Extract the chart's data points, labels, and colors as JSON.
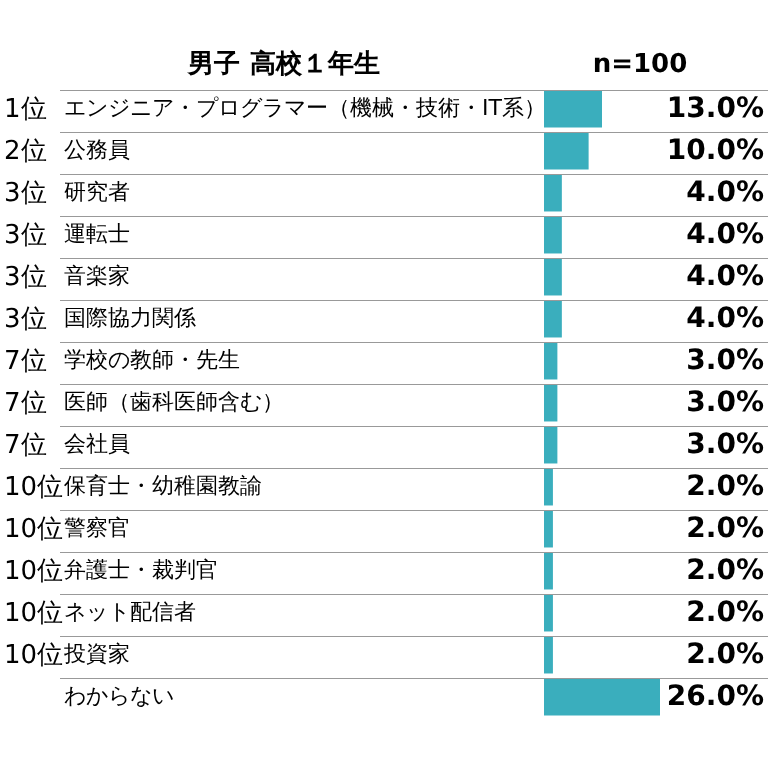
{
  "chart_data": {
    "type": "bar",
    "orientation": "horizontal",
    "title": "男子 高校１年生",
    "subtitle": "n=100",
    "categories": [
      "エンジニア・プログラマー（機械・技術・IT系）",
      "公務員",
      "研究者",
      "運転士",
      "音楽家",
      "国際協力関係",
      "学校の教師・先生",
      "医師（歯科医師含む）",
      "会社員",
      "保育士・幼稚園教諭",
      "警察官",
      "弁護士・裁判官",
      "ネット配信者",
      "投資家",
      "わからない"
    ],
    "values": [
      13.0,
      10.0,
      4.0,
      4.0,
      4.0,
      4.0,
      3.0,
      3.0,
      3.0,
      2.0,
      2.0,
      2.0,
      2.0,
      2.0,
      26.0
    ],
    "value_labels": [
      "13.0%",
      "10.0%",
      "4.0%",
      "4.0%",
      "4.0%",
      "4.0%",
      "3.0%",
      "3.0%",
      "3.0%",
      "2.0%",
      "2.0%",
      "2.0%",
      "2.0%",
      "2.0%",
      "26.0%"
    ],
    "color": "#3aaebd",
    "annotations": [
      "1位",
      "2位",
      "3位",
      "3位",
      "3位",
      "3位",
      "7位",
      "7位",
      "7位",
      "10位",
      "10位",
      "10位",
      "10位",
      "10位"
    ]
  }
}
